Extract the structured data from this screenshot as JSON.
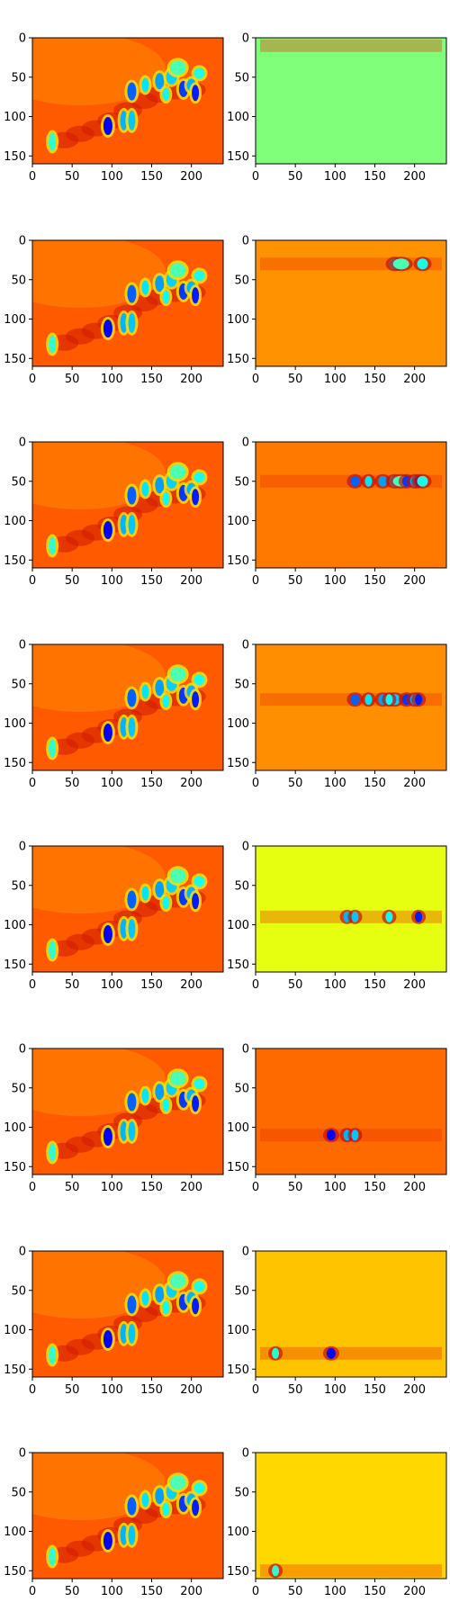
{
  "figure": {
    "rows": 8,
    "cols": 2,
    "colormap": "jet"
  },
  "chart_data": {
    "type": "heatmap",
    "xlim": [
      0,
      240
    ],
    "ylim": [
      160,
      0
    ],
    "grid": false,
    "x_ticks": [
      0,
      50,
      100,
      150,
      200
    ],
    "y_ticks": [
      0,
      50,
      100,
      150
    ],
    "left_panel_base_color": "#ff5a00",
    "right_panels": [
      {
        "row": 1,
        "base_color": "#80ff7a",
        "band_y": 10
      },
      {
        "row": 2,
        "base_color": "#ff9200",
        "band_y": 30
      },
      {
        "row": 3,
        "base_color": "#ff7800",
        "band_y": 50
      },
      {
        "row": 4,
        "base_color": "#ff8e00",
        "band_y": 70
      },
      {
        "row": 5,
        "base_color": "#e6ff10",
        "band_y": 90
      },
      {
        "row": 6,
        "base_color": "#ff6a00",
        "band_y": 110
      },
      {
        "row": 7,
        "base_color": "#ffc400",
        "band_y": 130
      },
      {
        "row": 8,
        "base_color": "#ffd800",
        "band_y": 150
      }
    ]
  }
}
